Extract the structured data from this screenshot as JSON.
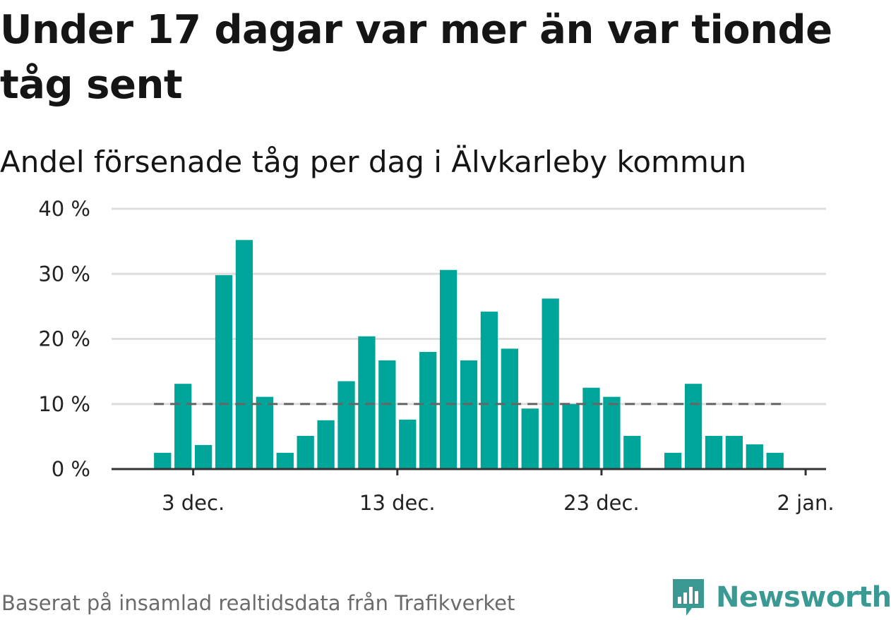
{
  "title": "Under 17 dagar var mer än var tionde tåg sent",
  "subtitle": "Andel försenade tåg per dag i Älvkarleby kommun",
  "footer": "Baserat på insamlad realtidsdata från Trafikverket",
  "logo": {
    "text": "Newsworthy",
    "icon": "bar-chart-bubble-icon",
    "color": "#3a9a93"
  },
  "colors": {
    "bar": "#00a59a",
    "reference": "#666666",
    "grid": "#dddddd",
    "axis": "#333333"
  },
  "chart_data": {
    "type": "bar",
    "x_axis": "date",
    "ylim": [
      0,
      40
    ],
    "y_ticks": [
      {
        "value": 0,
        "label": "0 %"
      },
      {
        "value": 10,
        "label": "10 %"
      },
      {
        "value": 20,
        "label": "20 %"
      },
      {
        "value": 30,
        "label": "30 %"
      },
      {
        "value": 40,
        "label": "40 %"
      }
    ],
    "x_ticks": [
      {
        "date": "2023-12-03",
        "label": "3 dec."
      },
      {
        "date": "2023-12-13",
        "label": "13 dec."
      },
      {
        "date": "2023-12-23",
        "label": "23 dec."
      },
      {
        "date": "2024-01-02",
        "label": "2 jan."
      }
    ],
    "grid": true,
    "reference_line": {
      "value": 10,
      "style": "dashed"
    },
    "data": [
      {
        "date": "2023-11-29",
        "value": 0
      },
      {
        "date": "2023-11-30",
        "value": 0
      },
      {
        "date": "2023-12-01",
        "value": 2.5
      },
      {
        "date": "2023-12-02",
        "value": 13.1
      },
      {
        "date": "2023-12-03",
        "value": 3.7
      },
      {
        "date": "2023-12-04",
        "value": 29.8
      },
      {
        "date": "2023-12-05",
        "value": 35.2
      },
      {
        "date": "2023-12-06",
        "value": 11.1
      },
      {
        "date": "2023-12-07",
        "value": 2.5
      },
      {
        "date": "2023-12-08",
        "value": 5.1
      },
      {
        "date": "2023-12-09",
        "value": 7.5
      },
      {
        "date": "2023-12-10",
        "value": 13.5
      },
      {
        "date": "2023-12-11",
        "value": 20.4
      },
      {
        "date": "2023-12-12",
        "value": 16.7
      },
      {
        "date": "2023-12-13",
        "value": 7.6
      },
      {
        "date": "2023-12-14",
        "value": 18.0
      },
      {
        "date": "2023-12-15",
        "value": 30.6
      },
      {
        "date": "2023-12-16",
        "value": 16.7
      },
      {
        "date": "2023-12-17",
        "value": 24.2
      },
      {
        "date": "2023-12-18",
        "value": 18.5
      },
      {
        "date": "2023-12-19",
        "value": 9.3
      },
      {
        "date": "2023-12-20",
        "value": 26.2
      },
      {
        "date": "2023-12-21",
        "value": 10.0
      },
      {
        "date": "2023-12-22",
        "value": 12.5
      },
      {
        "date": "2023-12-23",
        "value": 11.1
      },
      {
        "date": "2023-12-24",
        "value": 5.1
      },
      {
        "date": "2023-12-25",
        "value": 0
      },
      {
        "date": "2023-12-26",
        "value": 2.5
      },
      {
        "date": "2023-12-27",
        "value": 13.1
      },
      {
        "date": "2023-12-28",
        "value": 5.1
      },
      {
        "date": "2023-12-29",
        "value": 5.1
      },
      {
        "date": "2023-12-30",
        "value": 3.8
      },
      {
        "date": "2023-12-31",
        "value": 2.5
      },
      {
        "date": "2024-01-01",
        "value": 0
      },
      {
        "date": "2024-01-02",
        "value": 0
      }
    ]
  }
}
